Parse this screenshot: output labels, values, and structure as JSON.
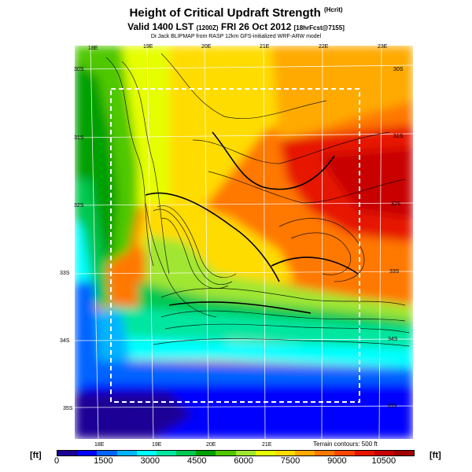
{
  "header": {
    "title": "Height of Critical Updraft Strength",
    "title_tag": "(Hcrit)",
    "valid_main": "Valid 1400 LST",
    "valid_mid": "(1200Z)",
    "valid_date": "FRI 26 Oct 2012",
    "valid_tag": "[18hrFcst@7155]",
    "credit": "Dr.Jack BLIPMAP from RASP 12km GFS-initialized WRF-ARW model"
  },
  "map": {
    "top_lon_labels": [
      "18E",
      "19E",
      "20E",
      "21E",
      "22E",
      "23E"
    ],
    "bottom_lon_labels": [
      "18E",
      "19E",
      "20E",
      "21E"
    ],
    "left_lat_labels": [
      "30S",
      "31S",
      "32S",
      "33S",
      "34S",
      "35S"
    ],
    "right_lat_labels": [
      "30S",
      "31S",
      "32S",
      "33S",
      "34S",
      "35S"
    ],
    "terrain_note": "Terrain contours: 500 ft"
  },
  "legend": {
    "unit_left": "[ft]",
    "unit_right": "[ft]",
    "ticks": [
      "0",
      "1500",
      "3000",
      "4500",
      "6000",
      "7500",
      "9000",
      "10500"
    ],
    "colors": [
      "#1b0096",
      "#0000ff",
      "#0064ff",
      "#00b4ff",
      "#00ffff",
      "#00e6a0",
      "#00c850",
      "#00a000",
      "#50c800",
      "#a0e632",
      "#e6ff00",
      "#ffdc00",
      "#ffaa00",
      "#ff7800",
      "#ff4600",
      "#e61400",
      "#c80000",
      "#a00000"
    ]
  }
}
